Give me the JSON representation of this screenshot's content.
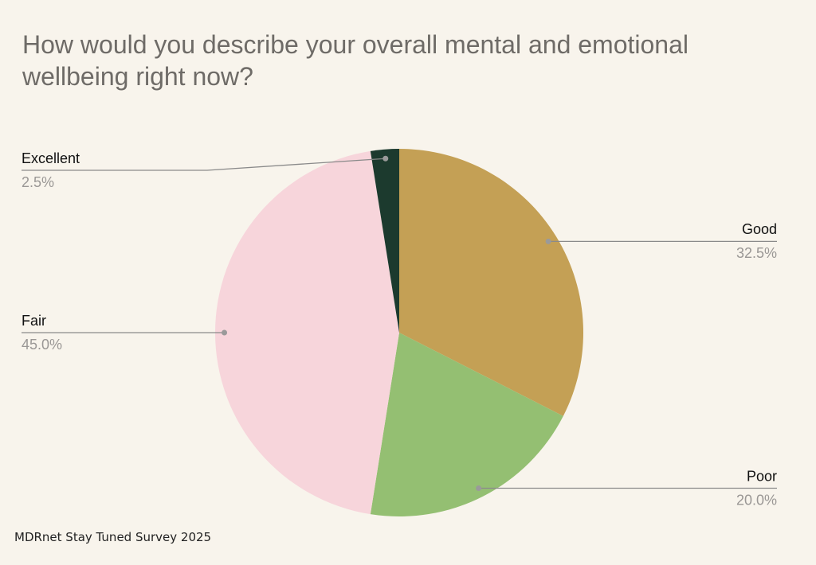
{
  "chart_data": {
    "type": "pie",
    "title": "How would you describe your overall mental and emotional wellbeing right now?",
    "footnote": "MDRnet Stay Tuned Survey 2025",
    "categories": [
      "Good",
      "Poor",
      "Fair",
      "Excellent"
    ],
    "values": [
      32.5,
      20.0,
      45.0,
      2.5
    ],
    "value_labels": [
      "32.5%",
      "20.0%",
      "45.0%",
      "2.5%"
    ],
    "colors": [
      "#c4a055",
      "#94bf72",
      "#f7d5db",
      "#1c3a2e"
    ]
  }
}
